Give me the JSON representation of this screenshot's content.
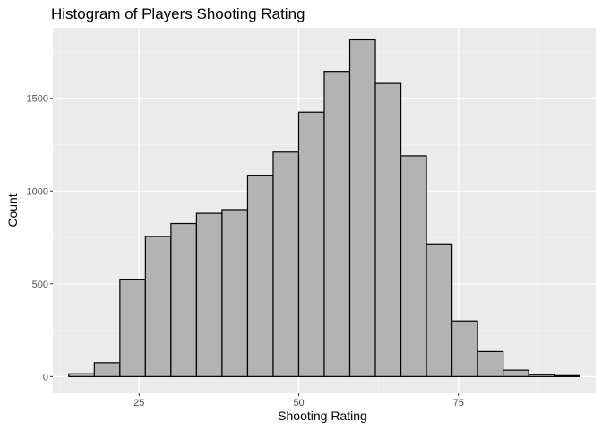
{
  "chart_data": {
    "type": "bar",
    "title": "Histogram of Players Shooting Rating",
    "xlabel": "Shooting Rating",
    "ylabel": "Count",
    "xlim": [
      11.5,
      96.5
    ],
    "ylim": [
      -90,
      1880
    ],
    "x_ticks": [
      25,
      50,
      75
    ],
    "y_ticks": [
      0,
      500,
      1000,
      1500
    ],
    "x_minor_ticks": [
      12.5,
      37.5,
      62.5,
      87.5
    ],
    "y_minor_ticks": [
      250,
      750,
      1250,
      1750
    ],
    "grid": true,
    "legend": "none",
    "bin_width": 4,
    "bins": [
      {
        "start": 14,
        "end": 18,
        "count": 15
      },
      {
        "start": 18,
        "end": 22,
        "count": 75
      },
      {
        "start": 22,
        "end": 26,
        "count": 525
      },
      {
        "start": 26,
        "end": 30,
        "count": 755
      },
      {
        "start": 30,
        "end": 34,
        "count": 825
      },
      {
        "start": 34,
        "end": 38,
        "count": 880
      },
      {
        "start": 38,
        "end": 42,
        "count": 900
      },
      {
        "start": 42,
        "end": 46,
        "count": 1085
      },
      {
        "start": 46,
        "end": 50,
        "count": 1210
      },
      {
        "start": 50,
        "end": 54,
        "count": 1425
      },
      {
        "start": 54,
        "end": 58,
        "count": 1645
      },
      {
        "start": 58,
        "end": 62,
        "count": 1815
      },
      {
        "start": 62,
        "end": 66,
        "count": 1580
      },
      {
        "start": 66,
        "end": 70,
        "count": 1190
      },
      {
        "start": 70,
        "end": 74,
        "count": 715
      },
      {
        "start": 74,
        "end": 78,
        "count": 300
      },
      {
        "start": 78,
        "end": 82,
        "count": 135
      },
      {
        "start": 82,
        "end": 86,
        "count": 35
      },
      {
        "start": 86,
        "end": 90,
        "count": 10
      },
      {
        "start": 90,
        "end": 94,
        "count": 5
      }
    ],
    "colors": {
      "panel_background": "#ebebeb",
      "major_grid": "#ffffff",
      "minor_grid": "#f5f5f5",
      "bar_fill": "#b3b3b3",
      "bar_outline": "#000000",
      "tick_text": "#4d4d4d",
      "tick_mark": "#333333"
    }
  }
}
